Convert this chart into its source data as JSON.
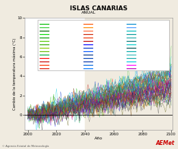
{
  "title": "ISLAS CANARIAS",
  "subtitle": "ANUAL",
  "xlabel": "Año",
  "ylabel": "Cambio de la temperatura máxima (°C)",
  "xlim": [
    1998,
    2101
  ],
  "ylim": [
    -1.5,
    10
  ],
  "yticks": [
    0,
    2,
    4,
    6,
    8,
    10
  ],
  "xticks": [
    2000,
    2020,
    2040,
    2060,
    2080,
    2100
  ],
  "year_start": 2000,
  "year_end": 2100,
  "historical_end": 2005,
  "future_bg_start": 2040,
  "background_color": "#f0ebe0",
  "plot_bg_color": "#ffffff",
  "future_bg_color": "#f0ebe0",
  "num_series": 65,
  "seed": 42,
  "colors": [
    "#00bb00",
    "#33cc33",
    "#006600",
    "#00dd00",
    "#009900",
    "#55cc00",
    "#33aa00",
    "#88cc00",
    "#66bb00",
    "#00aa44",
    "#ff0000",
    "#cc0000",
    "#ff3300",
    "#dd1100",
    "#ff5500",
    "#ff8800",
    "#ff6633",
    "#cc2200",
    "#ee3300",
    "#bb0000",
    "#0000ff",
    "#0033cc",
    "#0055ff",
    "#003388",
    "#0044bb",
    "#0033aa",
    "#0066dd",
    "#0077ff",
    "#0088cc",
    "#4499ff",
    "#00bbbb",
    "#009999",
    "#22aaaa",
    "#007777",
    "#00cccc",
    "#005555",
    "#00aaaa",
    "#33bbbb",
    "#11aaaa",
    "#00ccdd",
    "#ff00ff",
    "#bb00bb",
    "#cc22cc",
    "#990099",
    "#dd00dd",
    "#774400",
    "#995500",
    "#bb5500",
    "#663300",
    "#884400",
    "#777700",
    "#999900",
    "#bbbb00",
    "#555500",
    "#888800",
    "#555555",
    "#777777",
    "#333333",
    "#111111",
    "#444444",
    "#00cc66",
    "#cc6600",
    "#6600cc",
    "#cc0066",
    "#0066cc"
  ]
}
